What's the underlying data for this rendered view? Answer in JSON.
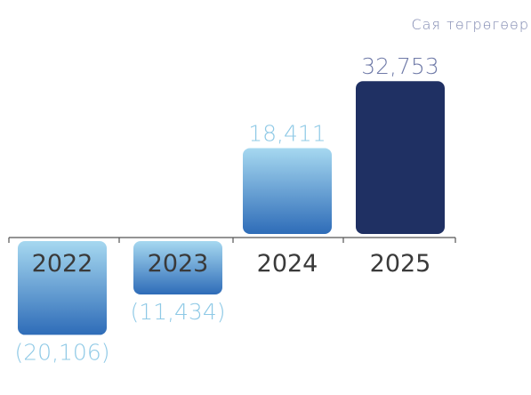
{
  "chart_data": {
    "type": "bar",
    "unit_label": "Сая төгрөгөөр",
    "categories": [
      "2022",
      "2023",
      "2024",
      "2025"
    ],
    "values": [
      -20106,
      -11434,
      18411,
      32753
    ],
    "value_labels": [
      "(20,106)",
      "(11,434)",
      "18,411",
      "32,753"
    ],
    "ylim": [
      -20106,
      32753
    ],
    "grid": false,
    "colors": {
      "gradient_top": "#a6d8f0",
      "gradient_bottom": "#2e6cb8",
      "highlight_bar": "#1f3063",
      "negative_label": "#8ec9e6",
      "positive_label": "#8ec9e6",
      "highlight_label": "#6f7aa8",
      "category_text": "#3a3a3a",
      "axis": "#555555",
      "unit_text": "#7f88b0"
    }
  }
}
